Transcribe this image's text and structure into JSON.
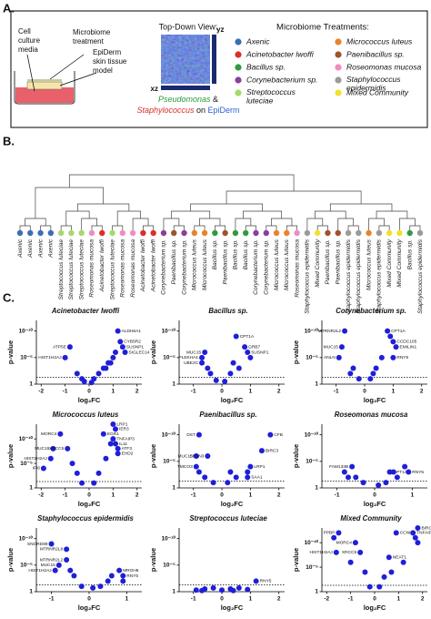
{
  "panel_a": {
    "label": "A.",
    "media_label": [
      "Cell",
      "culture",
      "media"
    ],
    "treatment_label": [
      "Microbiome",
      "treatment"
    ],
    "tissue_label": [
      "EpiDerm",
      "skin tissue",
      "model"
    ],
    "view_title": "Top-Down View:",
    "yz": "yz",
    "xz": "xz",
    "caption": {
      "organism1": "Pseudomonas",
      "join1": "&",
      "organism2": "Staphylococcus",
      "join2": "on",
      "host": "EpiDerm"
    },
    "legend": {
      "title": "Microbiome Treatments:",
      "items": [
        {
          "name": "Axenic",
          "color": "#3b6fb3"
        },
        {
          "name": "Acinetobacter lwoffi",
          "color": "#d8302a"
        },
        {
          "name": "Bacillus sp.",
          "color": "#2f9a43"
        },
        {
          "name": "Corynebacterium sp.",
          "color": "#8b3f9c"
        },
        {
          "name": "Streptococcus luteciae",
          "color": "#a8d86c"
        },
        {
          "name": "Micrococcus luteus",
          "color": "#e8832a"
        },
        {
          "name": "Paenibacillus sp.",
          "color": "#a0522d"
        },
        {
          "name": "Roseomonas mucosa",
          "color": "#f08cc2"
        },
        {
          "name": "Staphylococcus epidermidis",
          "color": "#9a9a9a"
        },
        {
          "name": "Mixed Community",
          "color": "#f1e12c"
        }
      ]
    }
  },
  "panel_b": {
    "label": "B.",
    "leaves": [
      "Axenic",
      "Axenic",
      "Axenic",
      "Axenic",
      "Streptococcus luteciae",
      "Streptococcus luteciae",
      "Streptococcus luteciae",
      "Roseomonas mucosa",
      "Acinetobacter lwoffi",
      "Streptococcus luteciae",
      "Roseomonas mucosa",
      "Roseomonas mucosa",
      "Acinetobacter lwoffi",
      "Acinetobacter lwoffi",
      "Corynebacterium sp.",
      "Paenibacillus sp.",
      "Corynebacterium sp.",
      "Micrococcus luteus",
      "Micrococcus luteus",
      "Bacillus sp.",
      "Paenibacillus sp.",
      "Bacillus sp.",
      "Bacillus sp.",
      "Corynebacterium sp.",
      "Corynebacterium sp.",
      "Micrococcus luteus",
      "Micrococcus luteus",
      "Roseomonas mucosa",
      "Staphylococcus epidermidis",
      "Mixed Community",
      "Paenibacillus sp.",
      "Paenibacillus sp.",
      "Staphylococcus epidermidis",
      "Staphylococcus epidermidis",
      "Micrococcus luteus",
      "Staphylococcus epidermidis",
      "Mixed Community",
      "Mixed Community",
      "Bacillus sp.",
      "Staphylococcus epidermidis"
    ]
  },
  "panel_c": {
    "label": "C."
  },
  "chart_data": [
    {
      "type": "scatter",
      "title": "Acinetobacter lwoffi",
      "xlabel": "log₂FC",
      "ylabel": "p-value",
      "color": "#1f1fd8",
      "ylog": true,
      "threshold": 0.05,
      "xlim": [
        -2.2,
        2.2
      ],
      "xticks": [
        -2,
        -1,
        0,
        1,
        2
      ],
      "ylim": [
        1,
        1e-12
      ],
      "yticks": [
        1,
        {
          "value": 1e-05,
          "label": "10⁻⁵"
        },
        {
          "value": 1e-10,
          "label": "10⁻¹⁰"
        }
      ],
      "x": [
        -0.8,
        -1.0,
        1.2,
        1.3,
        1.4,
        1.5,
        -0.5,
        -0.3,
        0.2,
        0.4,
        0.6,
        0.8,
        1.0,
        -0.2,
        0.1,
        0.7,
        0.9,
        1.1
      ],
      "y": [
        1e-07,
        1e-05,
        1e-10,
        1e-08,
        1e-07,
        1e-06,
        0.01,
        0.1,
        0.1,
        0.01,
        0.001,
        0.0001,
        1e-05,
        0.3,
        0.5,
        0.001,
        0.0001,
        1e-06
      ],
      "point_labels": [
        "ATP5E",
        "HIST1H2AJ",
        "ALDH6A1",
        "CYB5R2",
        "SUSNP1",
        "SIGLEC14",
        null,
        null,
        null,
        null,
        null,
        null,
        null,
        null,
        null,
        null,
        null,
        null
      ]
    },
    {
      "type": "scatter",
      "title": "Bacillus sp.",
      "xlabel": "log₂FC",
      "ylabel": "p-value",
      "color": "#1f1fd8",
      "ylog": true,
      "threshold": 0.05,
      "xlim": [
        -1.5,
        2.2
      ],
      "xticks": [
        -1,
        0,
        1,
        2
      ],
      "ylim": [
        1,
        1e-12
      ],
      "yticks": [
        1,
        {
          "value": 1e-05,
          "label": "10⁻⁵"
        },
        {
          "value": 1e-10,
          "label": "10⁻¹⁰"
        }
      ],
      "x": [
        -0.6,
        -0.7,
        -0.7,
        0.5,
        0.8,
        0.9,
        1.0,
        -0.4,
        -0.2,
        0.1,
        0.3,
        0.6,
        -0.5,
        0.4
      ],
      "y": [
        1e-06,
        1e-05,
        0.0001,
        1e-09,
        1e-07,
        1e-06,
        1e-05,
        0.01,
        0.2,
        0.3,
        0.01,
        0.001,
        0.001,
        0.0001
      ],
      "point_labels": [
        "MUC15",
        "PLEKHA1",
        "UBE2C",
        "CPT1A",
        "GRB7",
        "SUSNP1",
        null,
        null,
        null,
        null,
        null,
        null,
        null,
        null
      ]
    },
    {
      "type": "scatter",
      "title": "Corynebacterium sp.",
      "xlabel": "log₂FC",
      "ylabel": "p-value",
      "color": "#1f1fd8",
      "ylog": true,
      "threshold": 0.05,
      "xlim": [
        -1.5,
        2.2
      ],
      "xticks": [
        -1,
        0,
        1,
        2
      ],
      "ylim": [
        1,
        1e-12
      ],
      "yticks": [
        1,
        {
          "value": 1e-05,
          "label": "10⁻⁵"
        },
        {
          "value": 1e-10,
          "label": "10⁻¹⁰"
        }
      ],
      "x": [
        -0.7,
        -0.8,
        -0.9,
        0.8,
        0.9,
        1.0,
        1.1,
        1.0,
        -0.4,
        -0.2,
        0.2,
        0.4,
        0.6,
        -0.5,
        0.3
      ],
      "y": [
        1e-10,
        1e-07,
        1e-05,
        1e-10,
        1e-09,
        1e-08,
        1e-07,
        1e-05,
        0.001,
        0.1,
        0.1,
        0.001,
        1e-05,
        0.01,
        0.01
      ],
      "point_labels": [
        "MTRNR2L2",
        "MUC15",
        "ANLN",
        "CPT1A",
        null,
        "CCDC105",
        "EMILIN1",
        "RNY5",
        null,
        null,
        null,
        null,
        null,
        null,
        null
      ]
    },
    {
      "type": "scatter",
      "title": "Micrococcus luteus",
      "xlabel": "log₂FC",
      "ylabel": "p-value",
      "color": "#1f1fd8",
      "ylog": true,
      "threshold": 0.05,
      "xlim": [
        -2.2,
        2.2
      ],
      "xticks": [
        -2,
        -1,
        0,
        1,
        2
      ],
      "ylim": [
        1,
        1e-13
      ],
      "yticks": [
        1,
        {
          "value": 1e-05,
          "label": "10⁻⁵"
        },
        {
          "value": 1e-10,
          "label": "10⁻¹⁰"
        }
      ],
      "x": [
        -1.2,
        -1.5,
        -0.9,
        -1.6,
        -1.9,
        0.6,
        1.0,
        1.1,
        1.0,
        1.1,
        1.2,
        1.2,
        -0.5,
        -0.3,
        0.2,
        0.4,
        0.7,
        -0.7,
        0.9
      ],
      "y": [
        1e-11,
        1e-08,
        1e-08,
        1e-06,
        0.0001,
        1e-11,
        1e-13,
        1e-12,
        1e-10,
        1e-09,
        1e-08,
        1e-07,
        0.001,
        0.1,
        0.1,
        0.001,
        1e-06,
        1e-05,
        1e-09
      ],
      "point_labels": [
        "MORC4",
        "MUC15",
        "XRCC5",
        "HIST1H2AJ",
        "IFI6",
        "EGR1",
        "LRP1",
        "IER3",
        "TNFAIP3",
        "IL11",
        "ATF3",
        "EHD2",
        null,
        null,
        null,
        null,
        null,
        null,
        null
      ]
    },
    {
      "type": "scatter",
      "title": "Paenibacillus sp.",
      "xlabel": "log₂FC",
      "ylabel": "p-value",
      "color": "#1f1fd8",
      "ylog": true,
      "threshold": 0.05,
      "xlim": [
        -1.5,
        2.2
      ],
      "xticks": [
        -1,
        0,
        1,
        2
      ],
      "ylim": [
        1,
        1e-12
      ],
      "yticks": [
        1,
        {
          "value": 1e-05,
          "label": "10⁻⁵"
        },
        {
          "value": 1e-10,
          "label": "10⁻¹⁰"
        }
      ],
      "x": [
        -0.8,
        -0.9,
        -0.5,
        -0.9,
        -0.8,
        1.7,
        1.4,
        1.0,
        0.9,
        0.9,
        -0.3,
        0.2,
        0.5,
        -0.6,
        0.3
      ],
      "y": [
        1e-10,
        1e-06,
        1e-06,
        0.0001,
        0.001,
        1e-10,
        1e-07,
        0.0001,
        0.001,
        0.01,
        0.1,
        0.1,
        0.01,
        0.01,
        0.001
      ],
      "point_labels": [
        "DST",
        "MUC15",
        "SESN3",
        "TMCO3",
        null,
        "CFB",
        "BIRC3",
        "LRP1",
        null,
        "SAA1",
        null,
        null,
        null,
        null,
        null
      ]
    },
    {
      "type": "scatter",
      "title": "Roseomonas mucosa",
      "xlabel": "log₂FC",
      "ylabel": "p-value",
      "color": "#1f1fd8",
      "ylog": true,
      "threshold": 0.05,
      "xlim": [
        -1.4,
        1.4
      ],
      "xticks": [
        -1,
        0,
        1
      ],
      "ylim": [
        1,
        1e-12
      ],
      "yticks": [
        1,
        {
          "value": 1e-05,
          "label": "10⁻⁵"
        },
        {
          "value": 1e-10,
          "label": "10⁻¹⁰"
        }
      ],
      "x": [
        -0.6,
        0.4,
        0.9,
        -0.8,
        -0.5,
        -0.3,
        0.1,
        0.3,
        0.6,
        0.8,
        -0.7,
        0.5
      ],
      "y": [
        0.0001,
        0.001,
        0.001,
        0.001,
        0.01,
        0.1,
        0.3,
        0.1,
        0.01,
        0.0001,
        0.01,
        0.001
      ],
      "point_labels": [
        "FAM133B",
        "CPT1A",
        "RNY5",
        null,
        null,
        null,
        null,
        null,
        null,
        null,
        null,
        null
      ]
    },
    {
      "type": "scatter",
      "title": "Staphylococcus epidermidis",
      "xlabel": "log₂FC",
      "ylabel": "p-value",
      "color": "#1f1fd8",
      "ylog": true,
      "threshold": 0.05,
      "xlim": [
        -1.4,
        1.4
      ],
      "xticks": [
        -1,
        0,
        1
      ],
      "ylim": [
        1,
        1e-12
      ],
      "yticks": [
        1,
        {
          "value": 1e-05,
          "label": "10⁻⁵"
        },
        {
          "value": 1e-10,
          "label": "10⁻¹⁰"
        }
      ],
      "x": [
        -1.0,
        -0.6,
        -0.6,
        -0.8,
        -0.9,
        0.8,
        0.9,
        0.9,
        -0.4,
        -0.2,
        0.1,
        0.3,
        0.5,
        -0.5,
        0.6
      ],
      "y": [
        1e-09,
        1e-08,
        1e-06,
        1e-05,
        0.0001,
        0.0001,
        0.001,
        0.01,
        0.001,
        0.1,
        0.2,
        0.1,
        0.01,
        0.0001,
        0.001
      ],
      "point_labels": [
        "SNORD89",
        "MTRNR2L8",
        "MTRNR2L2",
        "MUC15",
        "HIST1H2AJ",
        "MROH6",
        "RNY5",
        null,
        null,
        null,
        null,
        null,
        null,
        null,
        null
      ]
    },
    {
      "type": "scatter",
      "title": "Streptococcus luteciae",
      "xlabel": "log₂FC",
      "ylabel": "p-value",
      "color": "#1f1fd8",
      "ylog": true,
      "threshold": 0.05,
      "xlim": [
        -1.5,
        2.2
      ],
      "xticks": [
        -1,
        0,
        1,
        2
      ],
      "ylim": [
        1,
        1e-12
      ],
      "yticks": [
        1,
        {
          "value": 1e-05,
          "label": "10⁻⁵"
        },
        {
          "value": 1e-10,
          "label": "10⁻¹⁰"
        }
      ],
      "x": [
        1.2,
        -0.9,
        -0.6,
        -0.3,
        0,
        0.3,
        0.6,
        0.9,
        -0.7,
        0.4
      ],
      "y": [
        0.01,
        0.5,
        0.3,
        0.2,
        0.5,
        0.3,
        0.2,
        0.4,
        0.6,
        0.6
      ],
      "point_labels": [
        "RNY5",
        null,
        null,
        null,
        null,
        null,
        null,
        null,
        null,
        null
      ]
    },
    {
      "type": "scatter",
      "title": "Mixed Community",
      "xlabel": "log₂FC",
      "ylabel": "p-value",
      "color": "#1f1fd8",
      "ylog": true,
      "threshold": 0.05,
      "xlim": [
        -2.2,
        2.2
      ],
      "xticks": [
        -2,
        -1,
        0,
        1,
        2
      ],
      "ylim": [
        1,
        1e-13
      ],
      "yticks": [
        1,
        {
          "value": 1e-05,
          "label": "10⁻⁵"
        },
        {
          "value": 1e-10,
          "label": "10⁻¹⁰"
        }
      ],
      "x": [
        -1.5,
        -1.7,
        -0.8,
        -1.6,
        -0.6,
        0.6,
        0.9,
        1.8,
        1.6,
        1.7,
        1.8,
        -0.4,
        -0.2,
        0.2,
        0.4,
        1.2,
        -1.0,
        0.7
      ],
      "y": [
        1e-12,
        1e-11,
        1e-10,
        1e-08,
        1e-08,
        1e-07,
        1e-12,
        1e-13,
        1e-12,
        1e-11,
        1e-10,
        0.0001,
        0.1,
        0.1,
        0.001,
        1e-06,
        1e-06,
        0.0001
      ],
      "point_labels": [
        "PPBP",
        null,
        "MORC4",
        "HIST1H2AJ",
        "XRCC5",
        "NEAT1",
        "CCNI",
        "BIRC3",
        "TNFAIP3",
        null,
        null,
        null,
        null,
        null,
        null,
        null,
        null,
        null
      ]
    }
  ]
}
